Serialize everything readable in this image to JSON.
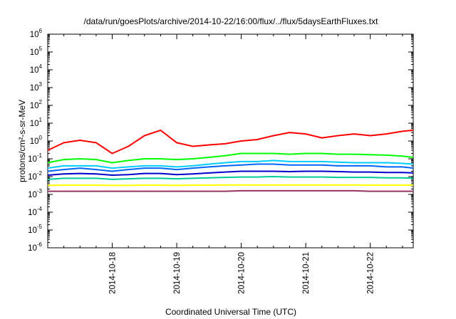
{
  "chart_data": {
    "type": "line",
    "title": "/data/run/goesPlots/archive/2014-10-22/16:00/flux/../flux/5daysEarthFluxes.txt",
    "xlabel": "Coordinated Universal Time (UTC)",
    "ylabel": "protons/cm²-s-sr-MeV",
    "y_scale": "log",
    "ylim": [
      1e-06,
      1000000.0
    ],
    "y_ticks": [
      1e-06,
      1e-05,
      0.0001,
      0.001,
      0.01,
      0.1,
      1,
      10,
      100,
      1000,
      10000,
      100000,
      1000000
    ],
    "y_tick_labels": [
      {
        "base": "10",
        "exp": "-6"
      },
      {
        "base": "10",
        "exp": "-5"
      },
      {
        "base": "10",
        "exp": "-4"
      },
      {
        "base": "10",
        "exp": "-3"
      },
      {
        "base": "10",
        "exp": "-2"
      },
      {
        "base": "10",
        "exp": "-1"
      },
      {
        "base": "10",
        "exp": "0"
      },
      {
        "base": "10",
        "exp": "1"
      },
      {
        "base": "10",
        "exp": "2"
      },
      {
        "base": "10",
        "exp": "3"
      },
      {
        "base": "10",
        "exp": "4"
      },
      {
        "base": "10",
        "exp": "5"
      },
      {
        "base": "10",
        "exp": "6"
      }
    ],
    "xlim": [
      "2014-10-17T00:00",
      "2014-10-22T16:00"
    ],
    "x_ticks": [
      "2014-10-18",
      "2014-10-19",
      "2014-10-20",
      "2014-10-21",
      "2014-10-22"
    ],
    "grid": false,
    "legend": "none",
    "series": [
      {
        "color": "#ff0000",
        "x": [
          "2014-10-17T00:00",
          "2014-10-17T06:00",
          "2014-10-17T12:00",
          "2014-10-17T18:00",
          "2014-10-18T00:00",
          "2014-10-18T06:00",
          "2014-10-18T12:00",
          "2014-10-18T18:00",
          "2014-10-19T00:00",
          "2014-10-19T06:00",
          "2014-10-19T12:00",
          "2014-10-19T18:00",
          "2014-10-20T00:00",
          "2014-10-20T06:00",
          "2014-10-20T12:00",
          "2014-10-20T18:00",
          "2014-10-21T00:00",
          "2014-10-21T06:00",
          "2014-10-21T12:00",
          "2014-10-21T18:00",
          "2014-10-22T00:00",
          "2014-10-22T06:00",
          "2014-10-22T12:00",
          "2014-10-22T16:00"
        ],
        "values": [
          0.3,
          0.8,
          1.1,
          0.8,
          0.2,
          0.5,
          2.0,
          4.0,
          0.8,
          0.5,
          0.6,
          0.7,
          1.0,
          1.2,
          2.0,
          3.0,
          2.5,
          1.5,
          2.0,
          2.5,
          2.0,
          2.5,
          3.5,
          4.0
        ]
      },
      {
        "color": "#00ff00",
        "x": [
          "2014-10-17T00:00",
          "2014-10-17T06:00",
          "2014-10-17T12:00",
          "2014-10-17T18:00",
          "2014-10-18T00:00",
          "2014-10-18T06:00",
          "2014-10-18T12:00",
          "2014-10-18T18:00",
          "2014-10-19T00:00",
          "2014-10-19T06:00",
          "2014-10-19T12:00",
          "2014-10-19T18:00",
          "2014-10-20T00:00",
          "2014-10-20T06:00",
          "2014-10-20T12:00",
          "2014-10-20T18:00",
          "2014-10-21T00:00",
          "2014-10-21T06:00",
          "2014-10-21T12:00",
          "2014-10-21T18:00",
          "2014-10-22T00:00",
          "2014-10-22T06:00",
          "2014-10-22T12:00",
          "2014-10-22T16:00"
        ],
        "values": [
          0.06,
          0.09,
          0.1,
          0.09,
          0.06,
          0.08,
          0.1,
          0.1,
          0.09,
          0.1,
          0.12,
          0.15,
          0.2,
          0.2,
          0.2,
          0.18,
          0.2,
          0.2,
          0.18,
          0.18,
          0.17,
          0.16,
          0.14,
          0.12
        ]
      },
      {
        "color": "#00ccff",
        "x": [
          "2014-10-17T00:00",
          "2014-10-17T06:00",
          "2014-10-17T12:00",
          "2014-10-17T18:00",
          "2014-10-18T00:00",
          "2014-10-18T06:00",
          "2014-10-18T12:00",
          "2014-10-18T18:00",
          "2014-10-19T00:00",
          "2014-10-19T06:00",
          "2014-10-19T12:00",
          "2014-10-19T18:00",
          "2014-10-20T00:00",
          "2014-10-20T06:00",
          "2014-10-20T12:00",
          "2014-10-20T18:00",
          "2014-10-21T00:00",
          "2014-10-21T06:00",
          "2014-10-21T12:00",
          "2014-10-21T18:00",
          "2014-10-22T00:00",
          "2014-10-22T06:00",
          "2014-10-22T12:00",
          "2014-10-22T16:00"
        ],
        "values": [
          0.03,
          0.04,
          0.04,
          0.04,
          0.03,
          0.035,
          0.04,
          0.04,
          0.035,
          0.04,
          0.05,
          0.06,
          0.07,
          0.07,
          0.08,
          0.07,
          0.07,
          0.07,
          0.065,
          0.06,
          0.06,
          0.06,
          0.055,
          0.05
        ]
      },
      {
        "color": "#0066ff",
        "x": [
          "2014-10-17T00:00",
          "2014-10-17T06:00",
          "2014-10-17T12:00",
          "2014-10-17T18:00",
          "2014-10-18T00:00",
          "2014-10-18T06:00",
          "2014-10-18T12:00",
          "2014-10-18T18:00",
          "2014-10-19T00:00",
          "2014-10-19T06:00",
          "2014-10-19T12:00",
          "2014-10-19T18:00",
          "2014-10-20T00:00",
          "2014-10-20T06:00",
          "2014-10-20T12:00",
          "2014-10-20T18:00",
          "2014-10-21T00:00",
          "2014-10-21T06:00",
          "2014-10-21T12:00",
          "2014-10-21T18:00",
          "2014-10-22T00:00",
          "2014-10-22T06:00",
          "2014-10-22T12:00",
          "2014-10-22T16:00"
        ],
        "values": [
          0.02,
          0.025,
          0.03,
          0.025,
          0.02,
          0.025,
          0.03,
          0.03,
          0.025,
          0.03,
          0.035,
          0.04,
          0.045,
          0.05,
          0.05,
          0.045,
          0.045,
          0.045,
          0.04,
          0.04,
          0.04,
          0.035,
          0.035,
          0.03
        ]
      },
      {
        "color": "#0000cc",
        "x": [
          "2014-10-17T00:00",
          "2014-10-17T06:00",
          "2014-10-17T12:00",
          "2014-10-17T18:00",
          "2014-10-18T00:00",
          "2014-10-18T06:00",
          "2014-10-18T12:00",
          "2014-10-18T18:00",
          "2014-10-19T00:00",
          "2014-10-19T06:00",
          "2014-10-19T12:00",
          "2014-10-19T18:00",
          "2014-10-20T00:00",
          "2014-10-20T06:00",
          "2014-10-20T12:00",
          "2014-10-20T18:00",
          "2014-10-21T00:00",
          "2014-10-21T06:00",
          "2014-10-21T12:00",
          "2014-10-21T18:00",
          "2014-10-22T00:00",
          "2014-10-22T06:00",
          "2014-10-22T12:00",
          "2014-10-22T16:00"
        ],
        "values": [
          0.012,
          0.014,
          0.015,
          0.014,
          0.012,
          0.013,
          0.015,
          0.015,
          0.013,
          0.014,
          0.016,
          0.018,
          0.02,
          0.02,
          0.02,
          0.019,
          0.02,
          0.02,
          0.019,
          0.018,
          0.018,
          0.017,
          0.017,
          0.016
        ]
      },
      {
        "color": "#00cc99",
        "x": [
          "2014-10-17T00:00",
          "2014-10-17T06:00",
          "2014-10-17T12:00",
          "2014-10-17T18:00",
          "2014-10-18T00:00",
          "2014-10-18T06:00",
          "2014-10-18T12:00",
          "2014-10-18T18:00",
          "2014-10-19T00:00",
          "2014-10-19T06:00",
          "2014-10-19T12:00",
          "2014-10-19T18:00",
          "2014-10-20T00:00",
          "2014-10-20T06:00",
          "2014-10-20T12:00",
          "2014-10-20T18:00",
          "2014-10-21T00:00",
          "2014-10-21T06:00",
          "2014-10-21T12:00",
          "2014-10-21T18:00",
          "2014-10-22T00:00",
          "2014-10-22T06:00",
          "2014-10-22T12:00",
          "2014-10-22T16:00"
        ],
        "values": [
          0.007,
          0.008,
          0.008,
          0.008,
          0.007,
          0.0075,
          0.008,
          0.008,
          0.0075,
          0.008,
          0.0085,
          0.009,
          0.0095,
          0.0095,
          0.01,
          0.0095,
          0.0095,
          0.0095,
          0.009,
          0.009,
          0.009,
          0.0085,
          0.0085,
          0.008
        ]
      },
      {
        "color": "#ffff00",
        "x": [
          "2014-10-17T00:00",
          "2014-10-17T06:00",
          "2014-10-17T12:00",
          "2014-10-17T18:00",
          "2014-10-18T00:00",
          "2014-10-18T06:00",
          "2014-10-18T12:00",
          "2014-10-18T18:00",
          "2014-10-19T00:00",
          "2014-10-19T06:00",
          "2014-10-19T12:00",
          "2014-10-19T18:00",
          "2014-10-20T00:00",
          "2014-10-20T06:00",
          "2014-10-20T12:00",
          "2014-10-20T18:00",
          "2014-10-21T00:00",
          "2014-10-21T06:00",
          "2014-10-21T12:00",
          "2014-10-21T18:00",
          "2014-10-22T00:00",
          "2014-10-22T06:00",
          "2014-10-22T12:00",
          "2014-10-22T16:00"
        ],
        "values": [
          0.0032,
          0.0033,
          0.0033,
          0.0033,
          0.0032,
          0.0032,
          0.0033,
          0.0033,
          0.0032,
          0.0033,
          0.0033,
          0.0034,
          0.0034,
          0.0034,
          0.0034,
          0.0034,
          0.0034,
          0.0034,
          0.0034,
          0.0034,
          0.0033,
          0.0033,
          0.0033,
          0.0033
        ]
      },
      {
        "color": "#993366",
        "x": [
          "2014-10-17T00:00",
          "2014-10-17T06:00",
          "2014-10-17T12:00",
          "2014-10-17T18:00",
          "2014-10-18T00:00",
          "2014-10-18T06:00",
          "2014-10-18T12:00",
          "2014-10-18T18:00",
          "2014-10-19T00:00",
          "2014-10-19T06:00",
          "2014-10-19T12:00",
          "2014-10-19T18:00",
          "2014-10-20T00:00",
          "2014-10-20T06:00",
          "2014-10-20T12:00",
          "2014-10-20T18:00",
          "2014-10-21T00:00",
          "2014-10-21T06:00",
          "2014-10-21T12:00",
          "2014-10-21T18:00",
          "2014-10-22T00:00",
          "2014-10-22T06:00",
          "2014-10-22T12:00",
          "2014-10-22T16:00"
        ],
        "values": [
          0.0015,
          0.0015,
          0.0015,
          0.0015,
          0.0015,
          0.0015,
          0.0015,
          0.0015,
          0.0015,
          0.0015,
          0.0015,
          0.0015,
          0.0016,
          0.0016,
          0.0016,
          0.0016,
          0.0016,
          0.0016,
          0.0016,
          0.0016,
          0.0015,
          0.0015,
          0.0015,
          0.0015
        ]
      }
    ]
  }
}
